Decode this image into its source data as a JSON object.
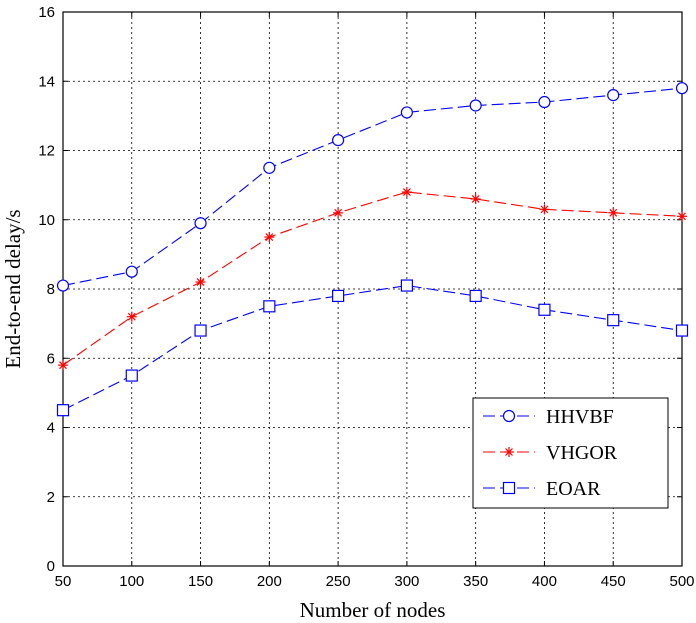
{
  "chart_data": {
    "type": "line",
    "title": "",
    "xlabel": "Number of nodes",
    "ylabel": "End-to-end delay/s",
    "x": [
      50,
      100,
      150,
      200,
      250,
      300,
      350,
      400,
      450,
      500
    ],
    "xlim": [
      50,
      500
    ],
    "ylim": [
      0,
      16
    ],
    "xticks": [
      "50",
      "100",
      "150",
      "200",
      "250",
      "300",
      "350",
      "400",
      "450",
      "500"
    ],
    "yticks": [
      "0",
      "2",
      "4",
      "6",
      "8",
      "10",
      "12",
      "14",
      "16"
    ],
    "grid": true,
    "legend_position": "bottom-right",
    "series": [
      {
        "name": "HHVBF",
        "marker": "circle",
        "color": "#0000ff",
        "values": [
          8.1,
          8.5,
          9.9,
          11.5,
          12.3,
          13.1,
          13.3,
          13.4,
          13.6,
          13.8
        ]
      },
      {
        "name": "VHGOR",
        "marker": "asterisk",
        "color": "#ff0000",
        "values": [
          5.8,
          7.2,
          8.2,
          9.5,
          10.2,
          10.8,
          10.6,
          10.3,
          10.2,
          10.1
        ]
      },
      {
        "name": "EOAR",
        "marker": "square",
        "color": "#0000ff",
        "values": [
          4.5,
          5.5,
          6.8,
          7.5,
          7.8,
          8.1,
          7.8,
          7.4,
          7.1,
          6.8
        ]
      }
    ]
  }
}
